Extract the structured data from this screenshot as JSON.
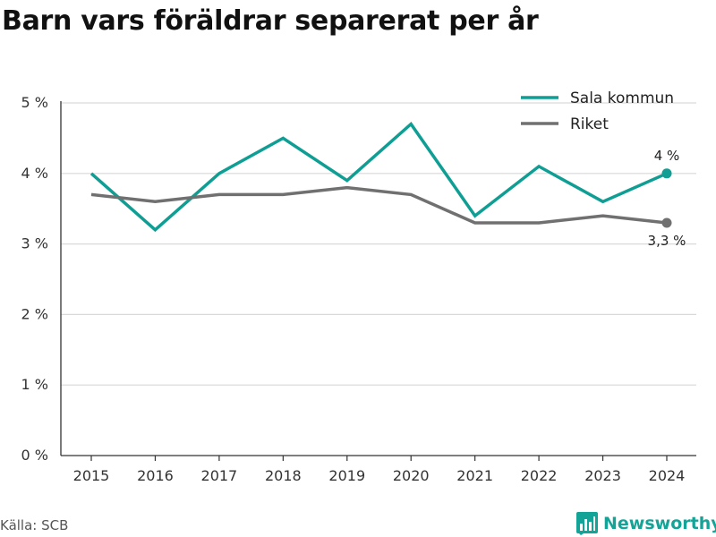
{
  "header": {
    "title": "Barn vars föräldrar separerat per år"
  },
  "footer": {
    "source": "Källa: SCB",
    "brand": "Newsworthy"
  },
  "colors": {
    "sala": "#0f9e94",
    "riket": "#707070",
    "grid": "#d9d9d9",
    "axis": "#333333",
    "brand": "#14a397"
  },
  "chart_data": {
    "type": "line",
    "categories": [
      "2015",
      "2016",
      "2017",
      "2018",
      "2019",
      "2020",
      "2021",
      "2022",
      "2023",
      "2024"
    ],
    "series": [
      {
        "name": "Sala kommun",
        "values": [
          4.0,
          3.2,
          4.0,
          4.5,
          3.9,
          4.7,
          3.4,
          4.1,
          3.6,
          4.0
        ],
        "end_label": "4 %"
      },
      {
        "name": "Riket",
        "values": [
          3.7,
          3.6,
          3.7,
          3.7,
          3.8,
          3.7,
          3.3,
          3.3,
          3.4,
          3.3
        ],
        "end_label": "3,3 %"
      }
    ],
    "ylim": [
      0,
      5
    ],
    "yticks": [
      0,
      1,
      2,
      3,
      4,
      5
    ],
    "ytick_labels": [
      "0 %",
      "1 %",
      "2 %",
      "3 %",
      "4 %",
      "5 %"
    ],
    "grid": true,
    "legend_position": "top-right"
  }
}
